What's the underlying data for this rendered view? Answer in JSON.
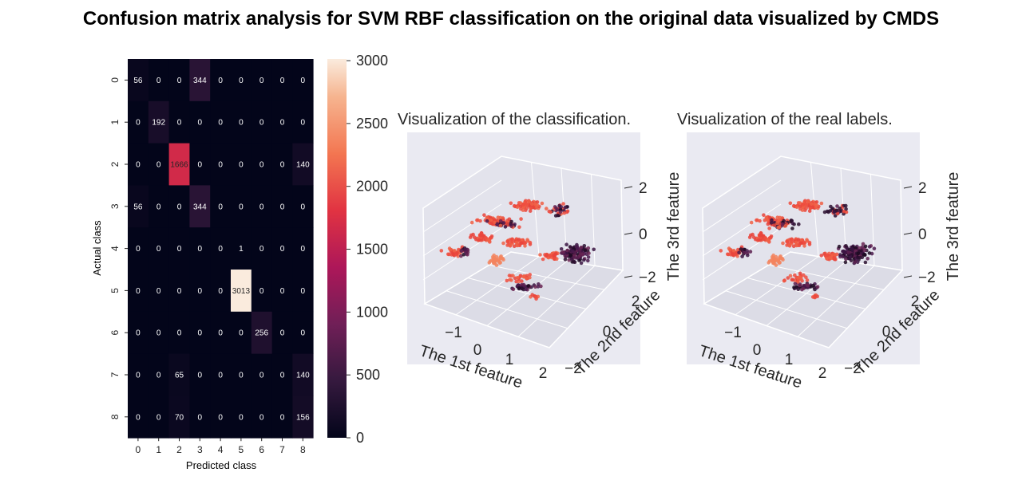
{
  "title": "Confusion matrix analysis for SVM RBF classification on the original data visualized by CMDS",
  "chart_data": [
    {
      "type": "heatmap",
      "xlabel": "Predicted class",
      "ylabel": "Actual class",
      "x_ticks": [
        "0",
        "1",
        "2",
        "3",
        "4",
        "5",
        "6",
        "7",
        "8"
      ],
      "y_ticks": [
        "0",
        "1",
        "2",
        "3",
        "4",
        "5",
        "6",
        "7",
        "8"
      ],
      "matrix": [
        [
          56,
          0,
          0,
          344,
          0,
          0,
          0,
          0,
          0
        ],
        [
          0,
          192,
          0,
          0,
          0,
          0,
          0,
          0,
          0
        ],
        [
          0,
          0,
          1666,
          0,
          0,
          0,
          0,
          0,
          140
        ],
        [
          56,
          0,
          0,
          344,
          0,
          0,
          0,
          0,
          0
        ],
        [
          0,
          0,
          0,
          0,
          0,
          1,
          0,
          0,
          0
        ],
        [
          0,
          0,
          0,
          0,
          0,
          3013,
          0,
          0,
          0
        ],
        [
          0,
          0,
          0,
          0,
          0,
          0,
          256,
          0,
          0
        ],
        [
          0,
          0,
          65,
          0,
          0,
          0,
          0,
          0,
          140
        ],
        [
          0,
          0,
          70,
          0,
          0,
          0,
          0,
          0,
          156
        ]
      ],
      "colorbar": {
        "ticks": [
          0,
          500,
          1000,
          1500,
          2000,
          2500,
          3000
        ],
        "range": [
          0,
          3013
        ]
      }
    },
    {
      "type": "scatter",
      "title": "Visualization of the classification.",
      "xlabel": "The 1st feature",
      "ylabel": "The 2nd feature",
      "zlabel": "The 3rd feature",
      "x_ticks": [
        "−1",
        "0",
        "1",
        "2"
      ],
      "y_ticks": [
        "−2",
        "0",
        "2"
      ],
      "z_ticks": [
        "−2",
        "0",
        "2"
      ]
    },
    {
      "type": "scatter",
      "title": "Visualization of the real labels.",
      "xlabel": "The 1st feature",
      "ylabel": "The 2nd feature",
      "zlabel": "The 3rd feature",
      "x_ticks": [
        "−1",
        "0",
        "1",
        "2"
      ],
      "y_ticks": [
        "−2",
        "0",
        "2"
      ],
      "z_ticks": [
        "−2",
        "0",
        "2"
      ]
    }
  ]
}
